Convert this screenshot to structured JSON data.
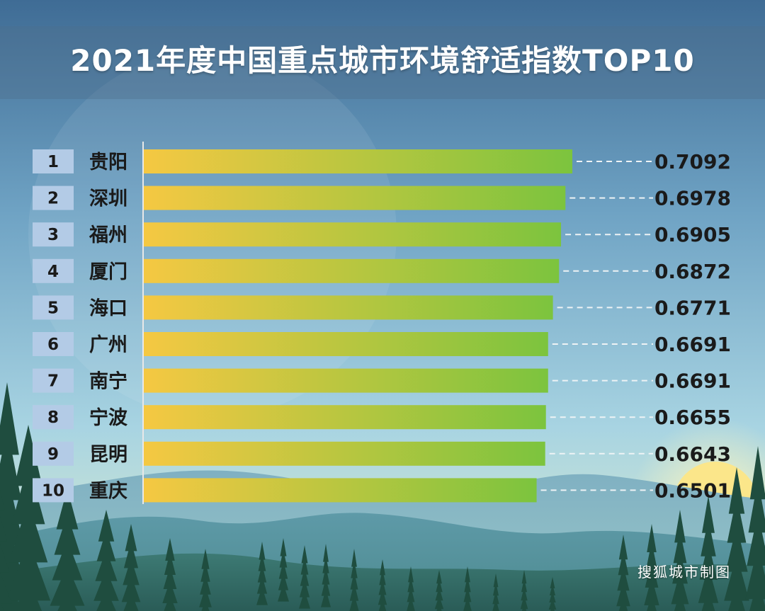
{
  "header": {
    "title": "2021年度中国重点城市环境舒适指数TOP10"
  },
  "footer": {
    "credit": "搜狐城市制图"
  },
  "colors": {
    "bar_start": "#f5c842",
    "bar_end": "#7cc43e",
    "rank_box": "#b3cbe6",
    "text_dark": "#1a1a1a",
    "axis": "#e8e8e8"
  },
  "chart_data": {
    "type": "bar",
    "orientation": "horizontal",
    "title": "2021年度中国重点城市环境舒适指数TOP10",
    "ranks": [
      "1",
      "2",
      "3",
      "4",
      "5",
      "6",
      "7",
      "8",
      "9",
      "10"
    ],
    "categories": [
      "贵阳",
      "深圳",
      "福州",
      "厦门",
      "海口",
      "广州",
      "南宁",
      "宁波",
      "昆明",
      "重庆"
    ],
    "values": [
      0.7092,
      0.6978,
      0.6905,
      0.6872,
      0.6771,
      0.6691,
      0.6691,
      0.6655,
      0.6643,
      0.6501
    ],
    "value_labels": [
      "0.7092",
      "0.6978",
      "0.6905",
      "0.6872",
      "0.6771",
      "0.6691",
      "0.6691",
      "0.6655",
      "0.6643",
      "0.6501"
    ],
    "xlim": [
      0,
      0.7092
    ],
    "grid": false,
    "legend": "none"
  }
}
